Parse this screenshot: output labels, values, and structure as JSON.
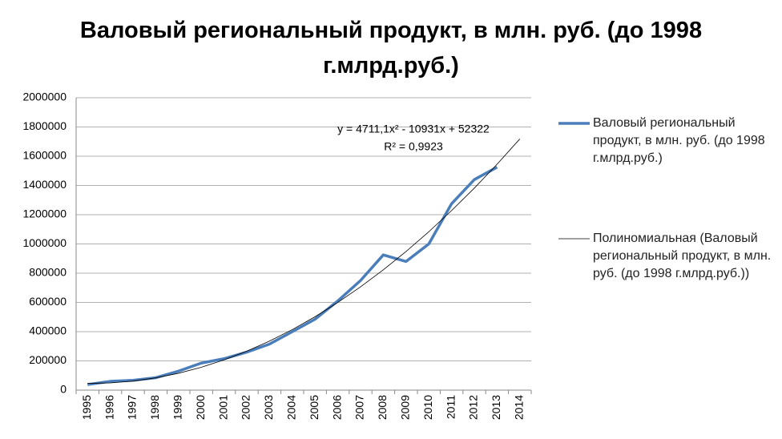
{
  "chart_data": {
    "type": "line",
    "title": "Валовый региональный продукт, в млн. руб. (до 1998 г.млрд.руб.)",
    "categories": [
      "1995",
      "1996",
      "1997",
      "1998",
      "1999",
      "2000",
      "2001",
      "2002",
      "2003",
      "2004",
      "2005",
      "2006",
      "2007",
      "2008",
      "2009",
      "2010",
      "2011",
      "2012",
      "2013",
      "2014"
    ],
    "series": [
      {
        "name": "Валовый региональный продукт, в млн. руб. (до 1998 г.млрд.руб.)",
        "color": "#4a7ebb",
        "values": [
          38000,
          60000,
          67000,
          85000,
          130000,
          185000,
          215000,
          260000,
          315000,
          400000,
          485000,
          610000,
          750000,
          925000,
          880000,
          1000000,
          1275000,
          1440000,
          1525000,
          null
        ]
      },
      {
        "name": "Полиномиальная (Валовый региональный продукт, в млн. руб. (до 1998 г.млрд.руб.))",
        "color": "#000000",
        "values": [
          46102,
          49304,
          61929,
          83976,
          115445,
          156336,
          206649,
          266384,
          335542,
          414122,
          502124,
          599548,
          706395,
          822664,
          948355,
          1083468,
          1228003,
          1381960,
          1545340,
          1718142
        ]
      }
    ],
    "annotations": [
      "y = 4711,1x² - 10931x + 52322",
      "R² = 0,9923"
    ],
    "ylim": [
      0,
      2000000
    ],
    "yticks": [
      0,
      200000,
      400000,
      600000,
      800000,
      1000000,
      1200000,
      1400000,
      1600000,
      1800000,
      2000000
    ],
    "grid": true,
    "legend": "right"
  }
}
